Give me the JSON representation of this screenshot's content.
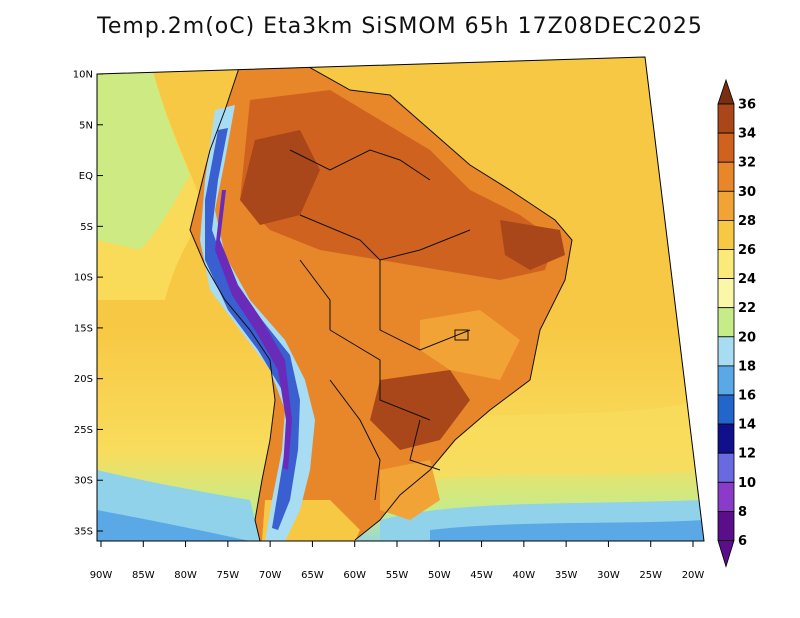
{
  "title": "Temp.2m(oC) Eta3km SiSMOM 65h 17Z08DEC2025",
  "map": {
    "lat_ticks": [
      {
        "value": 10,
        "label": "10N"
      },
      {
        "value": 5,
        "label": "5N"
      },
      {
        "value": 0,
        "label": "EQ"
      },
      {
        "value": -5,
        "label": "5S"
      },
      {
        "value": -10,
        "label": "10S"
      },
      {
        "value": -15,
        "label": "15S"
      },
      {
        "value": -20,
        "label": "20S"
      },
      {
        "value": -25,
        "label": "25S"
      },
      {
        "value": -30,
        "label": "30S"
      },
      {
        "value": -35,
        "label": "35S"
      }
    ],
    "lon_ticks": [
      {
        "value": -90,
        "label": "90W"
      },
      {
        "value": -85,
        "label": "85W"
      },
      {
        "value": -80,
        "label": "80W"
      },
      {
        "value": -75,
        "label": "75W"
      },
      {
        "value": -70,
        "label": "70W"
      },
      {
        "value": -65,
        "label": "65W"
      },
      {
        "value": -60,
        "label": "60W"
      },
      {
        "value": -55,
        "label": "55W"
      },
      {
        "value": -50,
        "label": "50W"
      },
      {
        "value": -45,
        "label": "45W"
      },
      {
        "value": -40,
        "label": "40W"
      },
      {
        "value": -35,
        "label": "35W"
      },
      {
        "value": -30,
        "label": "30W"
      },
      {
        "value": -25,
        "label": "25W"
      },
      {
        "value": -20,
        "label": "20W"
      }
    ],
    "colors": {
      "ocean_warm": "#f7c843",
      "ocean_mid": "#f9dc5c",
      "ocean_cool": "#c6ec8a",
      "ocean_cold": "#8fd2ea",
      "ocean_colder": "#5aa9e6",
      "land_hot": "#b85a1c",
      "land_warm": "#e8862a",
      "land_mild": "#f2a336",
      "andes_cold": "#3a5fd0",
      "andes_colder": "#6a2bb8",
      "border": "#111111"
    }
  },
  "colorbar": {
    "labels": [
      "36",
      "34",
      "32",
      "30",
      "28",
      "26",
      "24",
      "22",
      "20",
      "18",
      "16",
      "14",
      "12",
      "10",
      "8",
      "6"
    ],
    "colors": [
      "#7a2e10",
      "#a9461a",
      "#d0621f",
      "#e8862a",
      "#f2a336",
      "#f7c843",
      "#fbe97a",
      "#fbf7a8",
      "#c6ec8a",
      "#a8dcf2",
      "#5aa9e6",
      "#2266cc",
      "#10108c",
      "#6a6ae0",
      "#8a3cc8",
      "#5a0e8a"
    ]
  }
}
